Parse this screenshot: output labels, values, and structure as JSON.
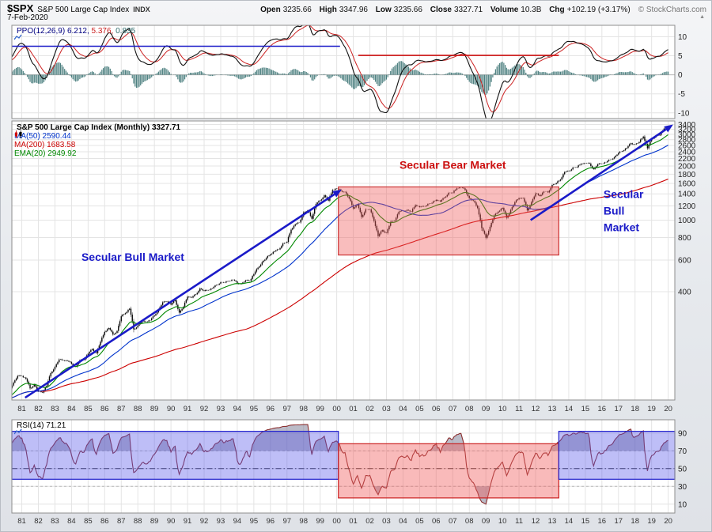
{
  "header": {
    "symbol": "$SPX",
    "name": "S&P 500 Large Cap Index",
    "exchange": "INDX",
    "date": "7-Feb-2020",
    "copyright": "© StockCharts.com",
    "quote": [
      {
        "label": "Open",
        "value": "3235.66"
      },
      {
        "label": "High",
        "value": "3347.96"
      },
      {
        "label": "Low",
        "value": "3235.66"
      },
      {
        "label": "Close",
        "value": "3327.71"
      },
      {
        "label": "Volume",
        "value": "10.3B"
      },
      {
        "label": "Chg",
        "value": "+102.19 (+3.17%)"
      }
    ]
  },
  "panels": {
    "ppo": {
      "label": "PPO(12,26,9)",
      "values": [
        "6.212,",
        "5.376,",
        "0.835"
      ]
    },
    "main": {
      "title": "S&P 500 Large Cap Index (Monthly) 3327.71"
    },
    "rsi": {
      "label": "RSI(14)",
      "value": "71.21"
    }
  },
  "colors": {
    "ppo_label": "#000080",
    "ppo_line": "#111111",
    "ppo_signal": "#cc2222",
    "ppo_histogram": "#2f6b6b",
    "rsi_line": "#8b3030",
    "bull_annotation": "#1a1ac8",
    "bear_annotation": "#cc1111",
    "candle": "#0a0a0a",
    "grid": "#e4e4e4",
    "panel_border": "#8e8e8e"
  },
  "chart_data": {
    "type": "candlestick",
    "title": "S&P 500 Large Cap Index (Monthly)",
    "x_start_year": 1978.0,
    "x_step_years": 0.25,
    "display_range_years": [
      1980.4,
      2020.4
    ],
    "quarterly_close": [
      89,
      95,
      102,
      96,
      101,
      102,
      109,
      108,
      102,
      114,
      125,
      136,
      136,
      131,
      116,
      122,
      112,
      110,
      120,
      141,
      153,
      168,
      166,
      165,
      159,
      153,
      166,
      167,
      181,
      192,
      182,
      211,
      239,
      251,
      231,
      242,
      292,
      304,
      322,
      247,
      259,
      274,
      272,
      278,
      295,
      318,
      349,
      353,
      339,
      358,
      306,
      330,
      375,
      371,
      387,
      417,
      404,
      408,
      418,
      436,
      452,
      450,
      459,
      466,
      446,
      444,
      462,
      459,
      501,
      544,
      584,
      616,
      645,
      671,
      687,
      741,
      757,
      885,
      947,
      970,
      1102,
      1133,
      1017,
      1229,
      1286,
      1373,
      1283,
      1469,
      1499,
      1455,
      1436,
      1320,
      1160,
      1224,
      1041,
      1148,
      1147,
      990,
      815,
      880,
      848,
      975,
      996,
      1112,
      1126,
      1141,
      1115,
      1212,
      1181,
      1191,
      1229,
      1248,
      1295,
      1270,
      1336,
      1418,
      1421,
      1503,
      1527,
      1468,
      1323,
      1280,
      1166,
      903,
      798,
      919,
      1057,
      1115,
      1169,
      1031,
      1141,
      1258,
      1326,
      1321,
      1131,
      1258,
      1408,
      1362,
      1441,
      1426,
      1569,
      1606,
      1682,
      1848,
      1872,
      1960,
      1972,
      2059,
      2068,
      2063,
      1920,
      2044,
      2060,
      2099,
      2168,
      2239,
      2363,
      2423,
      2519,
      2674,
      2641,
      2718,
      2914,
      2507,
      2834,
      2942,
      2977,
      3231,
      3327.71
    ],
    "last_bar": {
      "open": 3235.66,
      "high": 3347.96,
      "low": 3235.66,
      "close": 3327.71
    },
    "y_axis": {
      "scale": "log",
      "range": [
        100,
        3560
      ],
      "ticks": [
        3400,
        3200,
        3000,
        2800,
        2600,
        2400,
        2200,
        2000,
        1800,
        1600,
        1400,
        1200,
        1000,
        800,
        600,
        400
      ]
    },
    "x_tick_start_year": 1981,
    "x_tick_labels": [
      "81",
      "82",
      "83",
      "84",
      "85",
      "86",
      "87",
      "88",
      "89",
      "90",
      "91",
      "92",
      "93",
      "94",
      "95",
      "96",
      "97",
      "98",
      "99",
      "00",
      "01",
      "02",
      "03",
      "04",
      "05",
      "06",
      "07",
      "08",
      "09",
      "10",
      "11",
      "12",
      "13",
      "14",
      "15",
      "16",
      "17",
      "18",
      "19",
      "20"
    ],
    "overlays": [
      {
        "label": "MA(50) 2590.44",
        "name": "MA(50)",
        "last": 2590.44,
        "color": "#0033cc",
        "kind": "sma",
        "period": 50
      },
      {
        "label": "MA(200) 1683.58",
        "name": "MA(200)",
        "last": 1683.58,
        "color": "#cc0000",
        "kind": "sma",
        "period": 200
      },
      {
        "label": "EMA(20) 2949.92",
        "name": "EMA(20)",
        "last": 2949.92,
        "color": "#008800",
        "kind": "ema",
        "period": 20
      }
    ],
    "indicator_panels": [
      {
        "name": "PPO",
        "params": "12,26,9",
        "last_values": [
          6.212,
          5.376,
          0.835
        ],
        "ylim": [
          -11.5,
          13
        ],
        "ticks": [
          10,
          5,
          0,
          -5,
          -10
        ]
      },
      {
        "name": "RSI",
        "params": "14",
        "last_value": 71.21,
        "ylim": [
          0,
          105
        ],
        "ticks": [
          90,
          70,
          50,
          30,
          10
        ],
        "center_line": 50
      }
    ],
    "annotations": {
      "price_panel": {
        "bear_box": {
          "t0": 2000.1,
          "t1": 2013.4,
          "price_low": 640,
          "price_high": 1530
        },
        "bull_arrows": [
          {
            "t0": 1981.2,
            "p0": 103,
            "t1": 2000.3,
            "p1": 1480
          },
          {
            "t0": 2011.7,
            "p0": 1000,
            "t1": 2020.3,
            "p1": 3400
          }
        ],
        "labels": [
          {
            "text": "Secular Bull Market",
            "t": 1987.7,
            "price": 594,
            "color_key": "bull_annotation",
            "anchor": "middle"
          },
          {
            "text": "Secular Bear Market",
            "t": 2007.0,
            "price": 1934,
            "color_key": "bear_annotation",
            "anchor": "middle"
          },
          {
            "lines": [
              "Secular",
              "Bull",
              "Market"
            ],
            "t": 2016.1,
            "price": 1326,
            "color_key": "bull_annotation",
            "anchor": "start"
          }
        ]
      },
      "ppo_panel": {
        "hlines": [
          {
            "t0": 1980.4,
            "t1": 2000.2,
            "v": 7.5,
            "color_key": "bull_annotation"
          },
          {
            "t0": 2001.3,
            "t1": 2013.4,
            "v": 5.1,
            "color_key": "bear_annotation"
          }
        ]
      },
      "rsi_panel": {
        "boxes": [
          {
            "t0": 1980.4,
            "t1": 2000.1,
            "v0": 38,
            "v1": 92,
            "kind": "bull"
          },
          {
            "t0": 2000.1,
            "t1": 2013.4,
            "v0": 17,
            "v1": 78,
            "kind": "bear"
          },
          {
            "t0": 2013.4,
            "t1": 2020.4,
            "v0": 38,
            "v1": 92,
            "kind": "bull"
          }
        ]
      }
    }
  }
}
